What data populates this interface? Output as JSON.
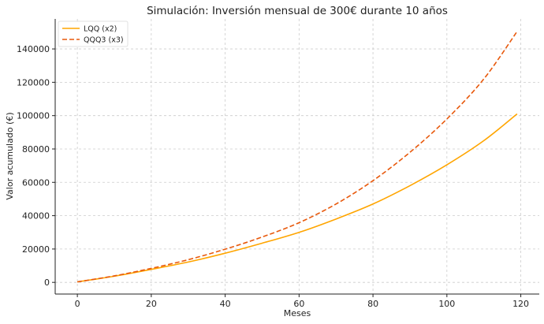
{
  "chart_data": {
    "type": "line",
    "title": "Simulación: Inversión mensual de 300€ durante 10 años",
    "xlabel": "Meses",
    "ylabel": "Valor acumulado (€)",
    "xlim": [
      -6,
      125
    ],
    "ylim": [
      -7000,
      158000
    ],
    "xticks": [
      0,
      20,
      40,
      60,
      80,
      100,
      120
    ],
    "yticks": [
      0,
      20000,
      40000,
      60000,
      80000,
      100000,
      120000,
      140000
    ],
    "grid": true,
    "legend_position": "top-left",
    "x": [
      0,
      10,
      20,
      30,
      40,
      50,
      60,
      70,
      80,
      90,
      100,
      110,
      119
    ],
    "series": [
      {
        "name": "LQQ (x2)",
        "color": "#ffa500",
        "dash": "solid",
        "values": [
          300,
          3700,
          7800,
          12200,
          17500,
          23500,
          30000,
          38000,
          47000,
          58000,
          70500,
          85000,
          101000
        ]
      },
      {
        "name": "QQQ3 (x3)",
        "color": "#e8590c",
        "dash": "dashed",
        "values": [
          300,
          3900,
          8400,
          13600,
          19900,
          27200,
          35800,
          47000,
          61000,
          78000,
          98000,
          122000,
          150500
        ]
      }
    ]
  }
}
